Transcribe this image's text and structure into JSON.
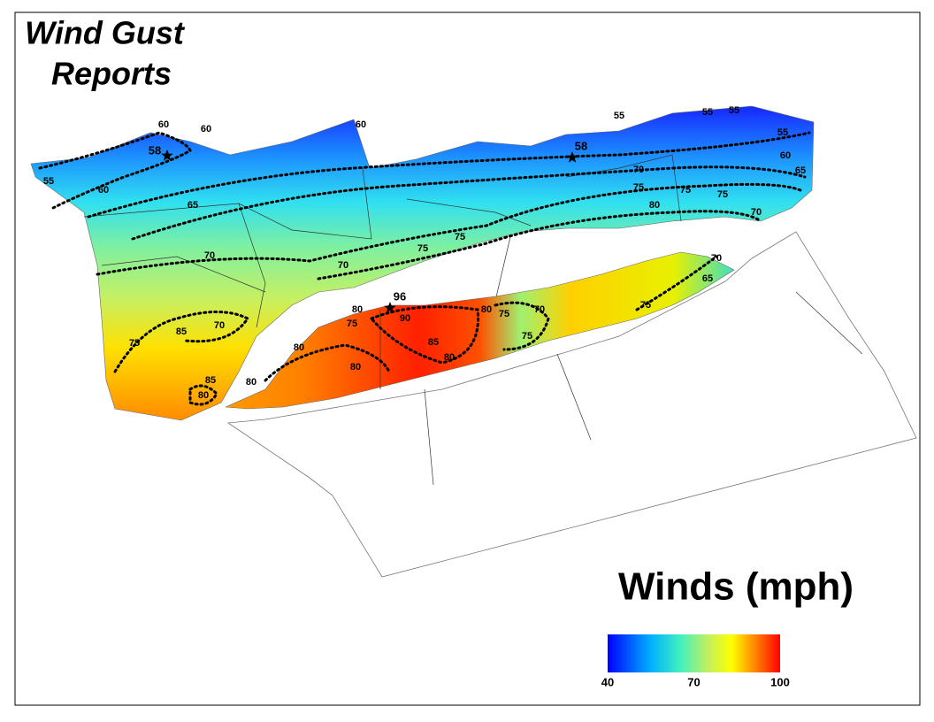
{
  "title_lines": [
    "Wind Gust",
    "Reports"
  ],
  "legend": {
    "title": "Winds (mph)",
    "ticks": [
      40,
      70,
      100
    ]
  },
  "reports": [
    58,
    58,
    96
  ],
  "contour_labels": [
    55,
    60,
    60,
    60,
    60,
    65,
    70,
    70,
    75,
    75,
    55,
    55,
    55,
    70,
    75,
    75,
    75,
    80,
    55,
    60,
    65,
    70,
    70,
    65,
    75,
    80,
    75,
    90,
    85,
    80,
    80,
    75,
    70,
    75,
    75,
    70,
    85,
    80,
    80,
    80,
    80,
    85
  ]
}
